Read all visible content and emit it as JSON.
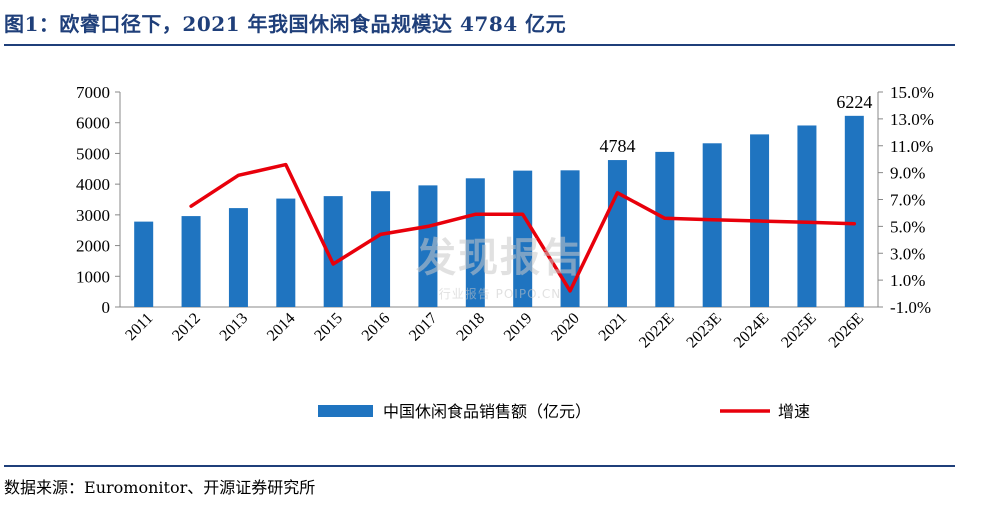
{
  "figure": {
    "title": "图1：欧睿口径下，2021 年我国休闲食品规模达 4784 亿元",
    "source_label": "数据来源：",
    "source_text": "Euromonitor、开源证券研究所"
  },
  "watermark": {
    "main": "发现报告",
    "sub": "行业报告 POIPO.CN"
  },
  "colors": {
    "bar": "#1f74c0",
    "line": "#e8000b",
    "title": "#1f3f7a"
  },
  "chart_data": {
    "type": "bar",
    "categories": [
      "2011",
      "2012",
      "2013",
      "2014",
      "2015",
      "2016",
      "2017",
      "2018",
      "2019",
      "2020",
      "2021",
      "2022E",
      "2023E",
      "2024E",
      "2025E",
      "2026E"
    ],
    "series": [
      {
        "name": "中国休闲食品销售额（亿元）",
        "type": "bar",
        "axis": "left",
        "values": [
          2780,
          2960,
          3220,
          3530,
          3610,
          3770,
          3960,
          4190,
          4440,
          4450,
          4784,
          5050,
          5330,
          5620,
          5910,
          6224
        ]
      },
      {
        "name": "增速",
        "type": "line",
        "axis": "right",
        "values": [
          null,
          6.5,
          8.8,
          9.6,
          2.2,
          4.4,
          5.0,
          5.9,
          5.9,
          0.2,
          7.5,
          5.6,
          5.5,
          5.4,
          5.3,
          5.2
        ]
      }
    ],
    "data_labels": [
      {
        "category": "2021",
        "text": "4784"
      },
      {
        "category": "2026E",
        "text": "6224"
      }
    ],
    "y_left": {
      "min": 0,
      "max": 7000,
      "ticks": [
        "0",
        "1000",
        "2000",
        "3000",
        "4000",
        "5000",
        "6000",
        "7000"
      ]
    },
    "y_right": {
      "min": -1,
      "max": 15,
      "ticks": [
        "-1.0%",
        "1.0%",
        "3.0%",
        "5.0%",
        "7.0%",
        "9.0%",
        "11.0%",
        "13.0%",
        "15.0%"
      ]
    },
    "grid": false,
    "legend_position": "bottom"
  }
}
